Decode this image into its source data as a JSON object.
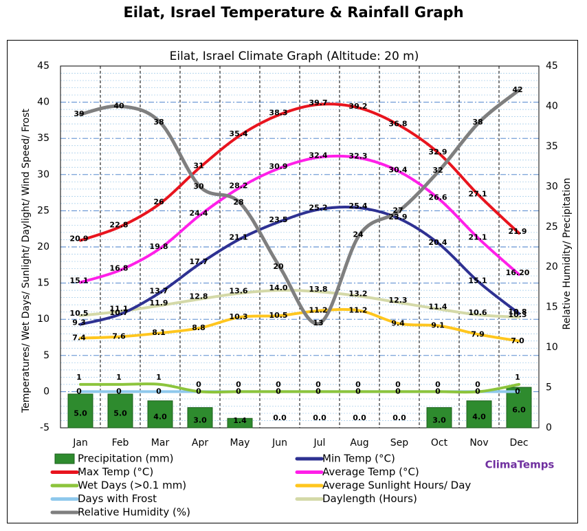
{
  "page_title": "Eilat, Israel Temperature & Rainfall Graph",
  "chart_data": {
    "type": "line",
    "title": "Eilat,  Israel Climate Graph (Altitude: 20 m)",
    "ylabel": "Temperatures/ Wet Days/ Sunlight/ Daylight/ Wind Speed/ Frost",
    "y2label": "Relative Humidity/ Precipitation",
    "ylim": [
      -5,
      45
    ],
    "y2lim": [
      0,
      45
    ],
    "yticks": [
      "-5",
      "0",
      "5",
      "10",
      "15",
      "20",
      "25",
      "30",
      "35",
      "40",
      "45"
    ],
    "y2ticks": [
      "0",
      "5",
      "10",
      "15",
      "20",
      "25",
      "30",
      "35",
      "40",
      "45"
    ],
    "categories": [
      "Jan",
      "Feb",
      "Mar",
      "Apr",
      "May",
      "Jun",
      "Jul",
      "Aug",
      "Sep",
      "Oct",
      "Nov",
      "Dec"
    ],
    "grid": true,
    "legend_position": "bottom",
    "watermark": "ClimaTemps",
    "colors": {
      "precipitation": "#2e8b2e",
      "min_temp": "#2e3192",
      "max_temp": "#e8141e",
      "avg_temp": "#ff1fe8",
      "wet_days": "#8cc43c",
      "sunlight": "#ffc61e",
      "frost": "#8ec8ec",
      "daylength": "#d4d9a8",
      "humidity": "#7f7f7f",
      "watermark": "#7030a0"
    },
    "series": [
      {
        "key": "precipitation",
        "name": "Precipitation (mm)",
        "type": "bar",
        "axis": "left",
        "values": [
          5.0,
          5.0,
          4.0,
          3.0,
          1.4,
          0.0,
          0.0,
          0.0,
          0.0,
          3.0,
          4.0,
          6.0
        ],
        "labels": [
          "5.0",
          "5.0",
          "4.0",
          "3.0",
          "1.4",
          "0.0",
          "0.0",
          "0.0",
          "0.0",
          "3.0",
          "4.0",
          "6.0"
        ]
      },
      {
        "key": "min_temp",
        "name": "Min Temp (°C)",
        "type": "line",
        "axis": "left",
        "values": [
          9.3,
          10.7,
          13.7,
          17.7,
          21.1,
          23.5,
          25.2,
          25.4,
          23.9,
          20.4,
          15.1,
          10.8
        ],
        "labels": [
          "9.3",
          "10.7",
          "13.7",
          "17.7",
          "21.1",
          "23.5",
          "25.2",
          "25.4",
          "23.9",
          "20.4",
          "15.1",
          "10.8"
        ]
      },
      {
        "key": "max_temp",
        "name": "Max Temp (°C)",
        "type": "line",
        "axis": "left",
        "values": [
          20.9,
          22.8,
          26,
          31,
          35.4,
          38.3,
          39.7,
          39.2,
          36.8,
          32.9,
          27.1,
          21.9
        ],
        "labels": [
          "20.9",
          "22.8",
          "26",
          "31",
          "35.4",
          "38.3",
          "39.7",
          "39.2",
          "36.8",
          "32.9",
          "27.1",
          "21.9"
        ]
      },
      {
        "key": "avg_temp",
        "name": "Average Temp (°C)",
        "type": "line",
        "axis": "left",
        "values": [
          15.1,
          16.8,
          19.8,
          24.4,
          28.2,
          30.9,
          32.4,
          32.3,
          30.4,
          26.6,
          21.1,
          16.2
        ],
        "labels": [
          "15.1",
          "16.8",
          "19.8",
          "24.4",
          "28.2",
          "30.9",
          "32.4",
          "32.3",
          "30.4",
          "26.6",
          "21.1",
          "16.20"
        ]
      },
      {
        "key": "wet_days",
        "name": "Wet Days (>0.1 mm)",
        "type": "line",
        "axis": "left",
        "values": [
          1,
          1,
          1,
          0,
          0,
          0,
          0,
          0,
          0,
          0,
          0,
          1
        ],
        "labels": [
          "1",
          "1",
          "1",
          "0",
          "0",
          "0",
          "0",
          "0",
          "0",
          "0",
          "0",
          "1"
        ]
      },
      {
        "key": "sunlight",
        "name": "Average Sunlight Hours/ Day",
        "type": "line",
        "axis": "left",
        "values": [
          7.4,
          7.6,
          8.1,
          8.8,
          10.3,
          10.5,
          11.2,
          11.2,
          9.4,
          9.1,
          7.9,
          7.0
        ],
        "labels": [
          "7.4",
          "7.6",
          "8.1",
          "8.8",
          "10.3",
          "10.5",
          "11.2",
          "11.2",
          "9.4",
          "9.1",
          "7.9",
          "7.0"
        ]
      },
      {
        "key": "frost",
        "name": "Days with Frost",
        "type": "line",
        "axis": "left",
        "values": [
          0,
          0,
          0,
          0,
          0,
          0,
          0,
          0,
          0,
          0,
          0,
          0
        ],
        "labels": [
          "0",
          "0",
          "0",
          "0",
          "0",
          "0",
          "0",
          "0",
          "0",
          "0",
          "0",
          "0"
        ]
      },
      {
        "key": "daylength",
        "name": "Daylength (Hours)",
        "type": "line",
        "axis": "left",
        "values": [
          10.5,
          11.1,
          11.9,
          12.8,
          13.6,
          14.0,
          13.8,
          13.2,
          12.3,
          11.4,
          10.6,
          10.3
        ],
        "labels": [
          "10.5",
          "11.1",
          "11.9",
          "12.8",
          "13.6",
          "14.0",
          "13.8",
          "13.2",
          "12.3",
          "11.4",
          "10.6",
          "10.3"
        ]
      },
      {
        "key": "humidity",
        "name": "Relative Humidity (%)",
        "type": "line",
        "axis": "right",
        "values": [
          39,
          40,
          38,
          30,
          28,
          20,
          13,
          24,
          27,
          32,
          38,
          42
        ],
        "labels": [
          "39",
          "40",
          "38",
          "30",
          "28",
          "20",
          "13",
          "24",
          "27",
          "32",
          "38",
          "42"
        ]
      }
    ],
    "legend_order": [
      "precipitation",
      "min_temp",
      "max_temp",
      "avg_temp",
      "wet_days",
      "sunlight",
      "frost",
      "daylength",
      "humidity"
    ]
  }
}
